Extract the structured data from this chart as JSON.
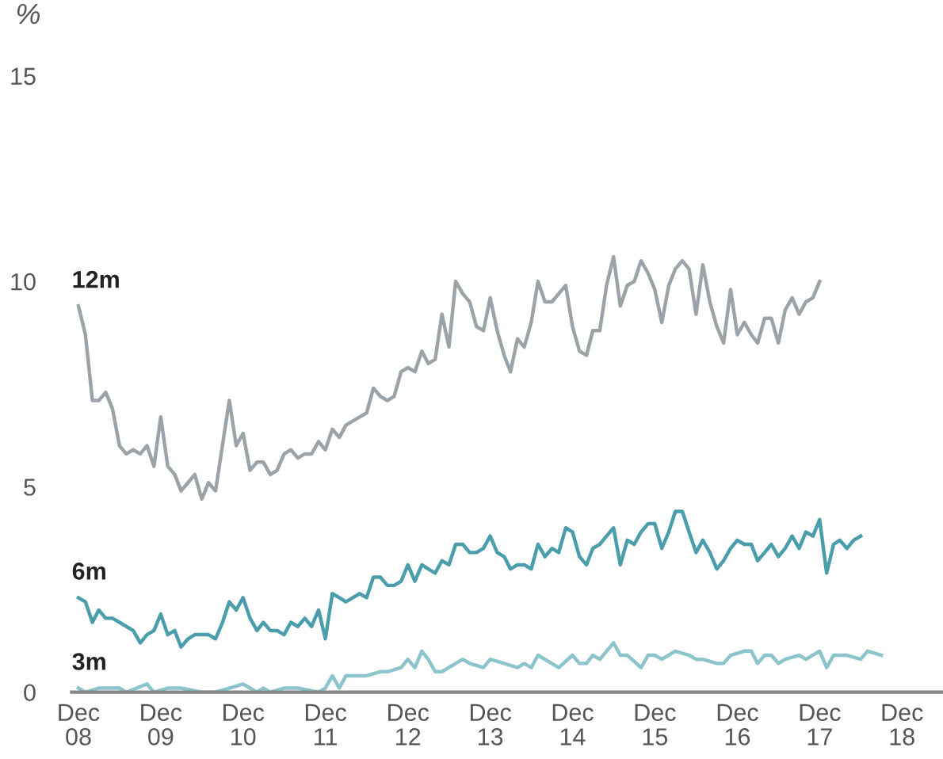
{
  "chart_data": {
    "type": "line",
    "ylabel": "%",
    "xlim": [
      "2008-11",
      "2019-06"
    ],
    "ylim": [
      0,
      15
    ],
    "yticks": [
      0,
      5,
      10,
      15
    ],
    "xticks": [
      {
        "value": "2008-12",
        "label": "Dec\n08"
      },
      {
        "value": "2009-12",
        "label": "Dec\n09"
      },
      {
        "value": "2010-12",
        "label": "Dec\n10"
      },
      {
        "value": "2011-12",
        "label": "Dec\n11"
      },
      {
        "value": "2012-12",
        "label": "Dec\n12"
      },
      {
        "value": "2013-12",
        "label": "Dec\n13"
      },
      {
        "value": "2014-12",
        "label": "Dec\n14"
      },
      {
        "value": "2015-12",
        "label": "Dec\n15"
      },
      {
        "value": "2016-12",
        "label": "Dec\n16"
      },
      {
        "value": "2017-12",
        "label": "Dec\n17"
      },
      {
        "value": "2018-12",
        "label": "Dec\n18"
      }
    ],
    "series": [
      {
        "name": "12m",
        "color": "#9ba3a9",
        "x": [
          "2008-12",
          "2009-01",
          "2009-02",
          "2009-03",
          "2009-04",
          "2009-05",
          "2009-06",
          "2009-07",
          "2009-08",
          "2009-09",
          "2009-10",
          "2009-11",
          "2009-12",
          "2010-01",
          "2010-02",
          "2010-03",
          "2010-04",
          "2010-05",
          "2010-06",
          "2010-07",
          "2010-08",
          "2010-10",
          "2010-11",
          "2010-12",
          "2011-01",
          "2011-02",
          "2011-03",
          "2011-04",
          "2011-05",
          "2011-06",
          "2011-07",
          "2011-08",
          "2011-09",
          "2011-10",
          "2011-11",
          "2011-12",
          "2012-01",
          "2012-02",
          "2012-03",
          "2012-04",
          "2012-06",
          "2012-07",
          "2012-08",
          "2012-09",
          "2012-10",
          "2012-11",
          "2012-12",
          "2013-01",
          "2013-02",
          "2013-03",
          "2013-04",
          "2013-05",
          "2013-06",
          "2013-07",
          "2013-08",
          "2013-09",
          "2013-10",
          "2013-11",
          "2013-12",
          "2014-01",
          "2014-02",
          "2014-03",
          "2014-04",
          "2014-05",
          "2014-06",
          "2014-07",
          "2014-08",
          "2014-09",
          "2014-10",
          "2014-11",
          "2014-12",
          "2015-01",
          "2015-02",
          "2015-03",
          "2015-04",
          "2015-05",
          "2015-06",
          "2015-07",
          "2015-08",
          "2015-09",
          "2015-10",
          "2015-11",
          "2015-12",
          "2016-01",
          "2016-02",
          "2016-03",
          "2016-04",
          "2016-05",
          "2016-06",
          "2016-07",
          "2016-08",
          "2016-09",
          "2016-10",
          "2016-11",
          "2016-12",
          "2017-01",
          "2017-02",
          "2017-03",
          "2017-04",
          "2017-05",
          "2017-06",
          "2017-07",
          "2017-08",
          "2017-09",
          "2017-10",
          "2017-11",
          "2017-12"
        ],
        "values": [
          9.4,
          8.7,
          7.1,
          7.1,
          7.3,
          6.9,
          6.0,
          5.8,
          5.9,
          5.8,
          6.0,
          5.5,
          6.7,
          5.5,
          5.3,
          4.9,
          5.1,
          5.3,
          4.7,
          5.1,
          4.9,
          7.1,
          6.0,
          6.3,
          5.4,
          5.6,
          5.6,
          5.3,
          5.4,
          5.8,
          5.9,
          5.7,
          5.8,
          5.8,
          6.1,
          5.9,
          6.4,
          6.2,
          6.5,
          6.6,
          6.8,
          7.4,
          7.2,
          7.1,
          7.2,
          7.8,
          7.9,
          7.8,
          8.3,
          8.0,
          8.1,
          9.2,
          8.4,
          10.0,
          9.7,
          9.5,
          8.9,
          8.8,
          9.6,
          8.8,
          8.2,
          7.8,
          8.6,
          8.4,
          9.0,
          10.0,
          9.5,
          9.5,
          9.7,
          9.9,
          8.9,
          8.3,
          8.2,
          8.8,
          8.8,
          9.9,
          10.6,
          9.4,
          9.9,
          10.0,
          10.5,
          10.2,
          9.8,
          9.0,
          9.9,
          10.3,
          10.5,
          10.3,
          9.2,
          10.4,
          9.5,
          8.9,
          8.5,
          9.8,
          8.7,
          9.0,
          8.7,
          8.5,
          9.1,
          9.1,
          8.5,
          9.3,
          9.6,
          9.2,
          9.5,
          9.6,
          10.0
        ]
      },
      {
        "name": "6m",
        "color": "#4a9eac",
        "x": [
          "2008-12",
          "2009-01",
          "2009-02",
          "2009-03",
          "2009-04",
          "2009-05",
          "2009-06",
          "2009-07",
          "2009-08",
          "2009-09",
          "2009-10",
          "2009-11",
          "2009-12",
          "2010-01",
          "2010-02",
          "2010-03",
          "2010-04",
          "2010-05",
          "2010-06",
          "2010-07",
          "2010-08",
          "2010-09",
          "2010-10",
          "2010-11",
          "2010-12",
          "2011-01",
          "2011-02",
          "2011-03",
          "2011-04",
          "2011-05",
          "2011-06",
          "2011-07",
          "2011-08",
          "2011-09",
          "2011-10",
          "2011-11",
          "2011-12",
          "2012-01",
          "2012-02",
          "2012-03",
          "2012-04",
          "2012-05",
          "2012-06",
          "2012-07",
          "2012-08",
          "2012-09",
          "2012-10",
          "2012-11",
          "2012-12",
          "2013-01",
          "2013-02",
          "2013-03",
          "2013-04",
          "2013-05",
          "2013-06",
          "2013-07",
          "2013-08",
          "2013-09",
          "2013-10",
          "2013-11",
          "2013-12",
          "2014-01",
          "2014-02",
          "2014-03",
          "2014-04",
          "2014-05",
          "2014-06",
          "2014-07",
          "2014-08",
          "2014-09",
          "2014-10",
          "2014-11",
          "2014-12",
          "2015-01",
          "2015-02",
          "2015-03",
          "2015-04",
          "2015-05",
          "2015-06",
          "2015-07",
          "2015-08",
          "2015-09",
          "2015-10",
          "2015-11",
          "2015-12",
          "2016-01",
          "2016-02",
          "2016-03",
          "2016-04",
          "2016-05",
          "2016-06",
          "2016-07",
          "2016-08",
          "2016-09",
          "2016-10",
          "2016-11",
          "2016-12",
          "2017-01",
          "2017-02",
          "2017-03",
          "2017-04",
          "2017-05",
          "2017-06",
          "2017-07",
          "2017-08",
          "2017-09",
          "2017-10",
          "2017-11",
          "2017-12",
          "2018-01",
          "2018-02",
          "2018-03",
          "2018-04",
          "2018-05",
          "2018-06"
        ],
        "values": [
          2.3,
          2.2,
          1.7,
          2.0,
          1.8,
          1.8,
          1.7,
          1.6,
          1.5,
          1.2,
          1.4,
          1.5,
          1.9,
          1.4,
          1.5,
          1.1,
          1.3,
          1.4,
          1.4,
          1.4,
          1.3,
          1.7,
          2.2,
          2.0,
          2.3,
          1.8,
          1.5,
          1.7,
          1.5,
          1.5,
          1.4,
          1.7,
          1.6,
          1.8,
          1.6,
          2.0,
          1.3,
          2.4,
          2.3,
          2.2,
          2.3,
          2.4,
          2.3,
          2.8,
          2.8,
          2.6,
          2.6,
          2.7,
          3.1,
          2.7,
          3.1,
          3.0,
          2.9,
          3.2,
          3.1,
          3.6,
          3.6,
          3.4,
          3.4,
          3.5,
          3.8,
          3.4,
          3.3,
          3.0,
          3.1,
          3.1,
          3.0,
          3.6,
          3.3,
          3.5,
          3.4,
          4.0,
          3.9,
          3.3,
          3.1,
          3.5,
          3.6,
          3.8,
          4.0,
          3.1,
          3.7,
          3.6,
          3.9,
          4.1,
          4.1,
          3.5,
          3.9,
          4.4,
          4.4,
          3.9,
          3.4,
          3.7,
          3.4,
          3.0,
          3.2,
          3.5,
          3.7,
          3.6,
          3.6,
          3.2,
          3.4,
          3.6,
          3.3,
          3.5,
          3.8,
          3.5,
          3.9,
          3.8,
          4.2,
          2.9,
          3.6,
          3.7,
          3.5,
          3.7,
          3.8
        ]
      },
      {
        "name": "3m",
        "color": "#8cc4cc",
        "x": [
          "2008-12",
          "2009-01",
          "2009-03",
          "2009-06",
          "2009-07",
          "2009-10",
          "2009-11",
          "2010-01",
          "2010-03",
          "2010-06",
          "2010-08",
          "2010-10",
          "2010-12",
          "2011-01",
          "2011-02",
          "2011-03",
          "2011-04",
          "2011-06",
          "2011-08",
          "2011-11",
          "2011-12",
          "2012-01",
          "2012-02",
          "2012-03",
          "2012-05",
          "2012-06",
          "2012-08",
          "2012-09",
          "2012-11",
          "2012-12",
          "2013-01",
          "2013-02",
          "2013-03",
          "2013-04",
          "2013-05",
          "2013-07",
          "2013-08",
          "2013-09",
          "2013-11",
          "2013-12",
          "2014-02",
          "2014-04",
          "2014-05",
          "2014-06",
          "2014-07",
          "2014-10",
          "2014-12",
          "2015-01",
          "2015-02",
          "2015-03",
          "2015-04",
          "2015-06",
          "2015-07",
          "2015-08",
          "2015-10",
          "2015-11",
          "2015-12",
          "2016-01",
          "2016-03",
          "2016-05",
          "2016-06",
          "2016-07",
          "2016-09",
          "2016-10",
          "2016-11",
          "2017-01",
          "2017-02",
          "2017-03",
          "2017-04",
          "2017-05",
          "2017-06",
          "2017-07",
          "2017-09",
          "2017-10",
          "2017-12",
          "2018-01",
          "2018-02",
          "2018-04",
          "2018-06",
          "2018-07",
          "2018-09"
        ],
        "values": [
          0.1,
          0.0,
          0.1,
          0.1,
          0.0,
          0.2,
          0.0,
          0.1,
          0.1,
          0.0,
          0.0,
          0.1,
          0.2,
          0.1,
          0.0,
          0.1,
          0.0,
          0.1,
          0.1,
          0.0,
          0.1,
          0.4,
          0.1,
          0.4,
          0.4,
          0.4,
          0.5,
          0.5,
          0.6,
          0.8,
          0.6,
          1.0,
          0.8,
          0.5,
          0.5,
          0.7,
          0.8,
          0.7,
          0.6,
          0.8,
          0.7,
          0.6,
          0.7,
          0.6,
          0.9,
          0.6,
          0.9,
          0.7,
          0.7,
          0.9,
          0.8,
          1.2,
          0.9,
          0.9,
          0.6,
          0.9,
          0.9,
          0.8,
          1.0,
          0.9,
          0.8,
          0.8,
          0.7,
          0.7,
          0.9,
          1.0,
          1.0,
          0.7,
          0.9,
          0.9,
          0.7,
          0.8,
          0.9,
          0.8,
          1.0,
          0.6,
          0.9,
          0.9,
          0.8,
          1.0,
          0.9
        ]
      }
    ]
  }
}
